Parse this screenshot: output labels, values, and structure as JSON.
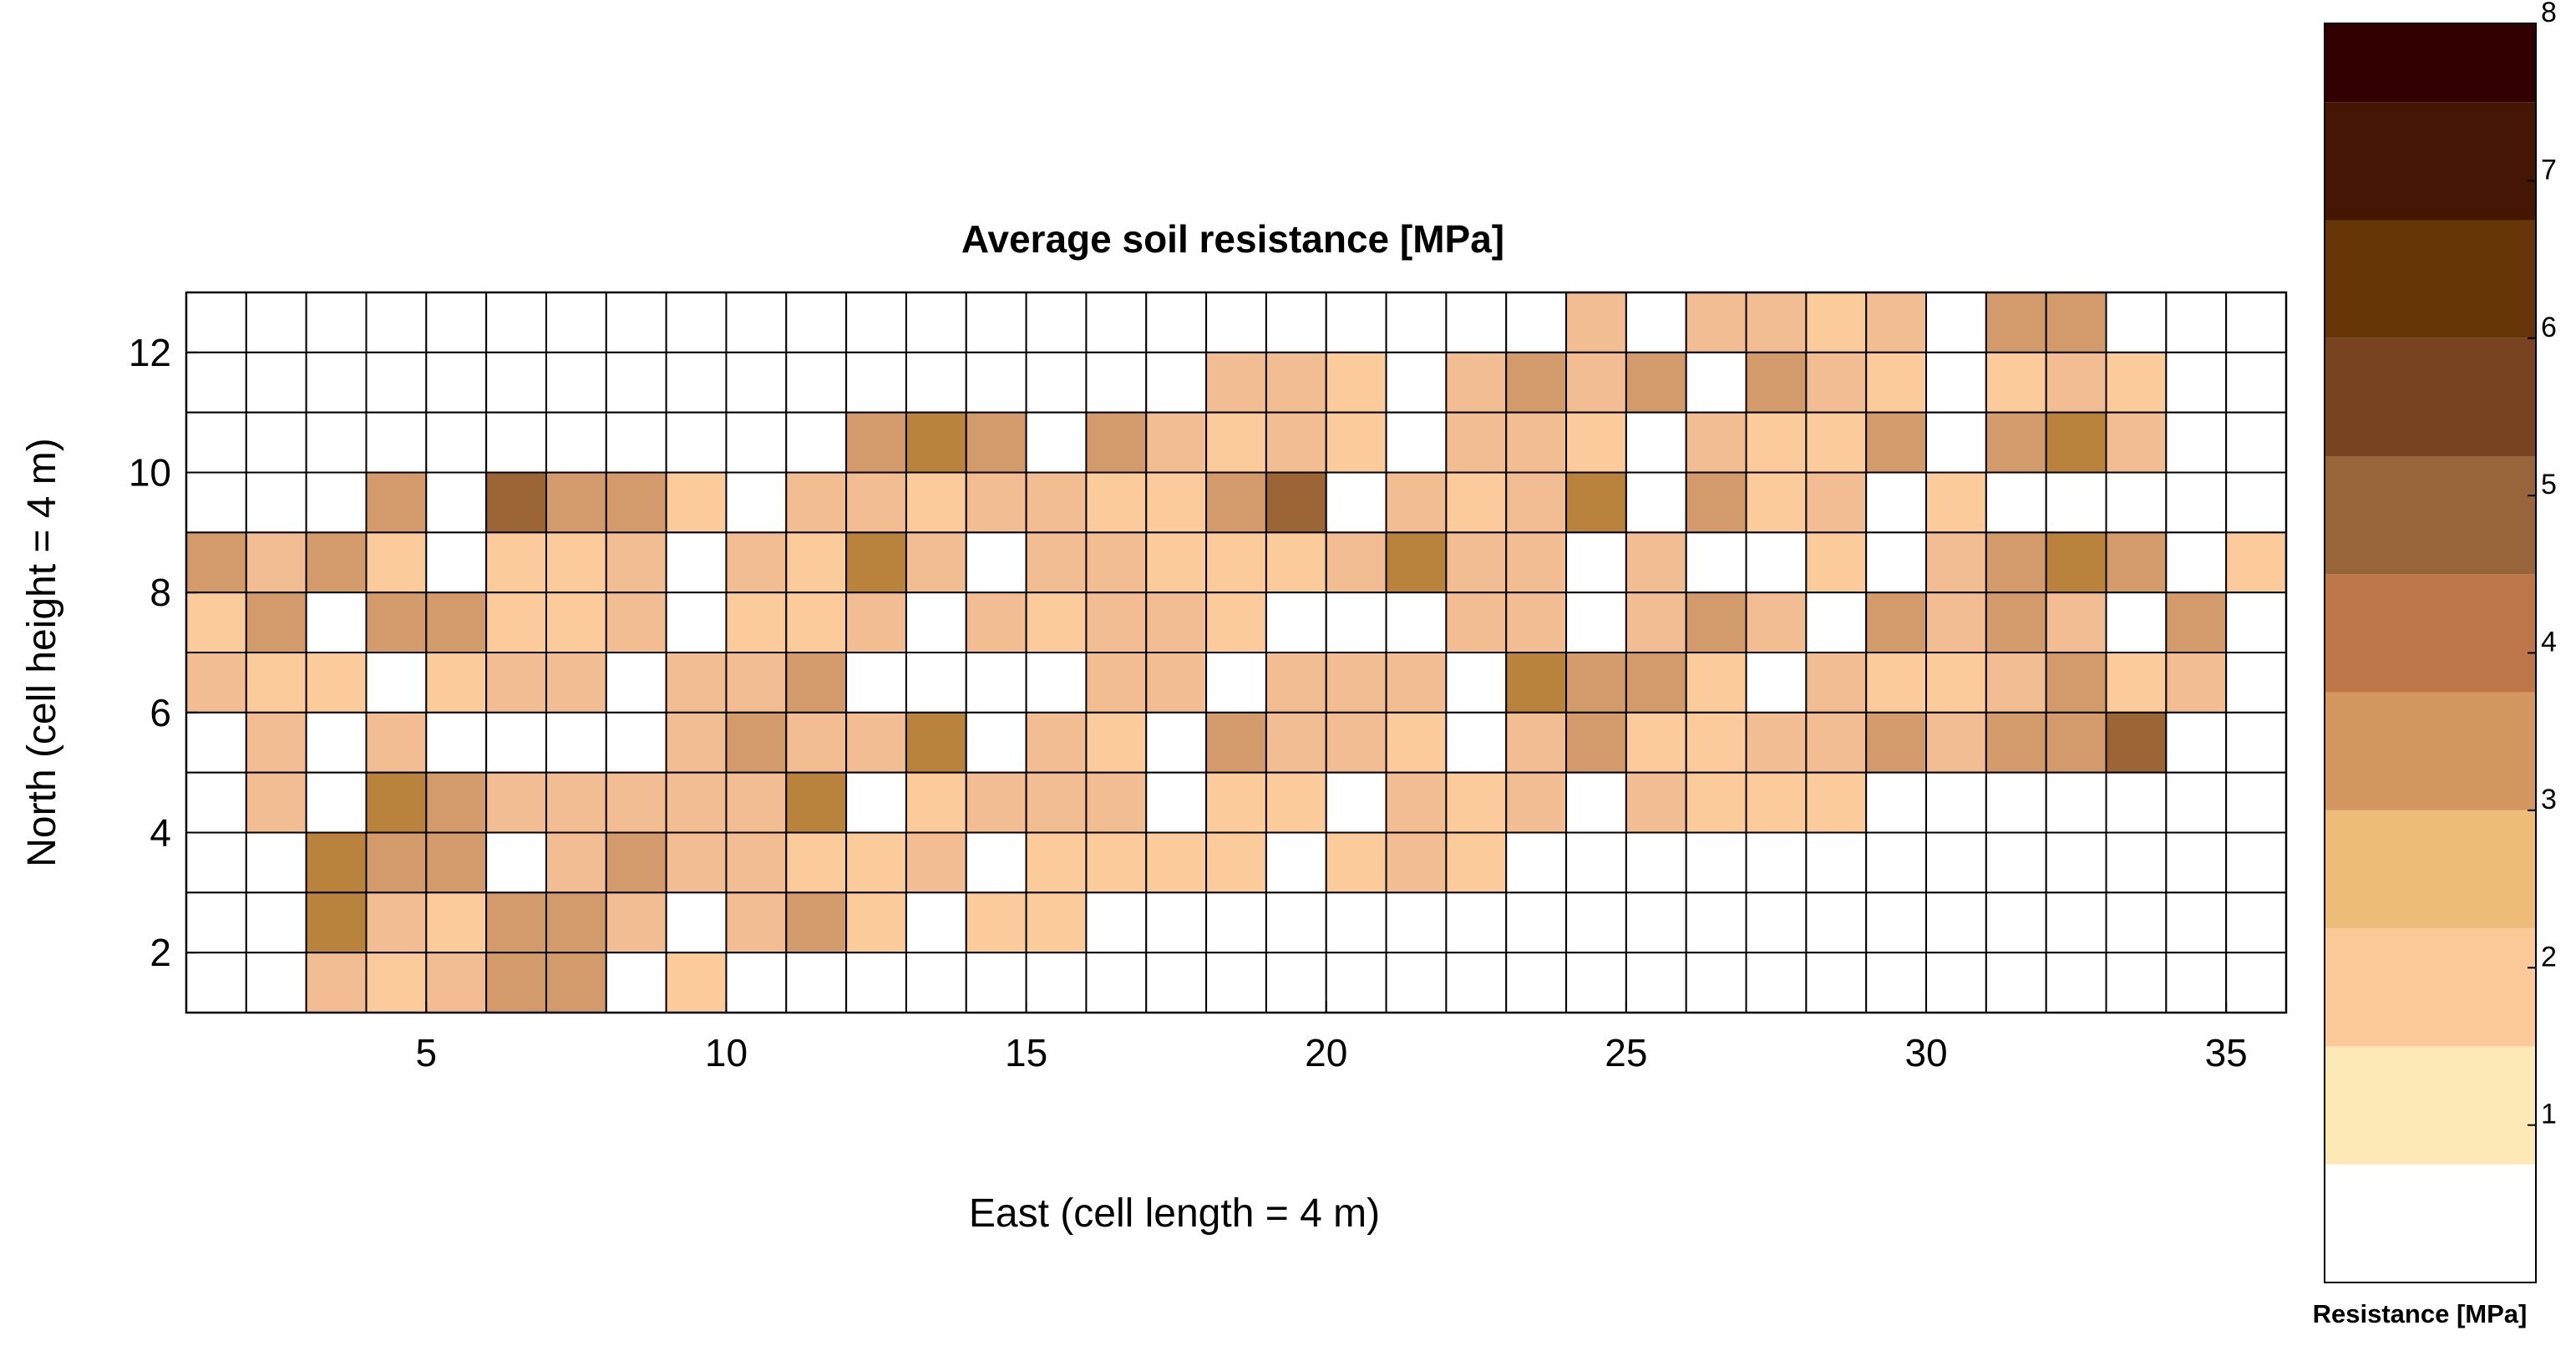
{
  "chart_data": {
    "type": "heatmap",
    "title": "Average soil resistance [MPa]",
    "xlabel": "East (cell length = 4 m)",
    "ylabel": "North (cell height = 4 m)",
    "xlim": [
      1,
      36
    ],
    "ylim": [
      1,
      13
    ],
    "x_ticks": [
      5,
      10,
      15,
      20,
      25,
      30,
      35
    ],
    "y_ticks": [
      2,
      4,
      6,
      8,
      10,
      12
    ],
    "grid": true,
    "colorbar": {
      "label": "Resistance [MPa]",
      "range": [
        0,
        8
      ],
      "ticks": [
        1,
        2,
        3,
        4,
        5,
        6,
        7,
        8
      ],
      "bands": [
        {
          "from": 0.0,
          "to": 0.75,
          "color": "#ffffff"
        },
        {
          "from": 0.75,
          "to": 1.5,
          "color": "#fde9b5"
        },
        {
          "from": 1.5,
          "to": 2.25,
          "color": "#fbc898"
        },
        {
          "from": 2.25,
          "to": 3.0,
          "color": "#ecbc78"
        },
        {
          "from": 3.0,
          "to": 3.75,
          "color": "#d4975f"
        },
        {
          "from": 3.75,
          "to": 4.5,
          "color": "#bd7748"
        },
        {
          "from": 4.5,
          "to": 5.25,
          "color": "#98653a"
        },
        {
          "from": 5.25,
          "to": 6.0,
          "color": "#784320"
        },
        {
          "from": 6.0,
          "to": 6.75,
          "color": "#663608"
        },
        {
          "from": 6.75,
          "to": 7.5,
          "color": "#461604"
        },
        {
          "from": 7.5,
          "to": 8.0,
          "color": "#320000"
        }
      ]
    },
    "cell_palette": {
      "0": "#ffffff",
      "1": "#fccb9b",
      "2": "#f2bd92",
      "3": "#d39b6b",
      "4": "#b9833e",
      "5": "#9b6535"
    },
    "row_order": "top-to-bottom (north 12 at top, north 1 at bottom)",
    "columns": 35,
    "grid_levels": [
      [
        0,
        0,
        0,
        0,
        0,
        0,
        0,
        0,
        0,
        0,
        0,
        0,
        0,
        0,
        0,
        0,
        0,
        0,
        0,
        0,
        0,
        0,
        0,
        2,
        0,
        2,
        2,
        1,
        2,
        0,
        3,
        3,
        0,
        0,
        0
      ],
      [
        0,
        0,
        0,
        0,
        0,
        0,
        0,
        0,
        0,
        0,
        0,
        0,
        0,
        0,
        0,
        0,
        0,
        2,
        2,
        1,
        0,
        2,
        3,
        2,
        3,
        0,
        3,
        2,
        1,
        0,
        1,
        2,
        1,
        0,
        0
      ],
      [
        0,
        0,
        0,
        0,
        0,
        0,
        0,
        0,
        0,
        0,
        0,
        3,
        4,
        3,
        0,
        3,
        2,
        1,
        2,
        1,
        0,
        2,
        2,
        1,
        0,
        2,
        1,
        1,
        3,
        0,
        3,
        4,
        2,
        0,
        0
      ],
      [
        0,
        0,
        0,
        3,
        0,
        5,
        3,
        3,
        1,
        0,
        2,
        2,
        1,
        2,
        2,
        1,
        1,
        3,
        5,
        0,
        2,
        1,
        2,
        4,
        0,
        3,
        1,
        2,
        0,
        1,
        0,
        0,
        0,
        0,
        0
      ],
      [
        3,
        2,
        3,
        1,
        0,
        1,
        1,
        2,
        0,
        2,
        1,
        4,
        2,
        0,
        2,
        2,
        1,
        1,
        1,
        2,
        4,
        2,
        2,
        0,
        2,
        0,
        0,
        1,
        0,
        2,
        3,
        4,
        3,
        0,
        1
      ],
      [
        1,
        3,
        0,
        3,
        3,
        1,
        1,
        2,
        0,
        1,
        1,
        2,
        0,
        2,
        1,
        2,
        2,
        1,
        0,
        0,
        0,
        2,
        2,
        0,
        2,
        3,
        2,
        0,
        3,
        2,
        3,
        2,
        0,
        3,
        0
      ],
      [
        2,
        1,
        1,
        0,
        1,
        2,
        2,
        0,
        2,
        2,
        3,
        0,
        0,
        0,
        0,
        2,
        2,
        0,
        2,
        2,
        2,
        0,
        4,
        3,
        3,
        1,
        0,
        2,
        1,
        1,
        2,
        3,
        1,
        2,
        0
      ],
      [
        0,
        2,
        0,
        2,
        0,
        0,
        0,
        0,
        2,
        3,
        2,
        2,
        4,
        0,
        2,
        1,
        0,
        3,
        2,
        2,
        1,
        0,
        2,
        3,
        1,
        1,
        2,
        2,
        3,
        2,
        3,
        3,
        5,
        0,
        0
      ],
      [
        0,
        2,
        0,
        4,
        3,
        2,
        2,
        2,
        2,
        2,
        4,
        0,
        1,
        2,
        2,
        2,
        0,
        1,
        1,
        0,
        2,
        1,
        2,
        0,
        2,
        1,
        1,
        1,
        0,
        0,
        0,
        0,
        0,
        0,
        0
      ],
      [
        0,
        0,
        4,
        3,
        3,
        0,
        2,
        3,
        2,
        2,
        1,
        1,
        2,
        0,
        1,
        1,
        1,
        1,
        0,
        1,
        2,
        1,
        0,
        0,
        0,
        0,
        0,
        0,
        0,
        0,
        0,
        0,
        0,
        0,
        0
      ],
      [
        0,
        0,
        4,
        2,
        1,
        3,
        3,
        2,
        0,
        2,
        3,
        1,
        0,
        1,
        1,
        0,
        0,
        0,
        0,
        0,
        0,
        0,
        0,
        0,
        0,
        0,
        0,
        0,
        0,
        0,
        0,
        0,
        0,
        0,
        0
      ],
      [
        0,
        0,
        2,
        1,
        2,
        3,
        3,
        0,
        1,
        0,
        0,
        0,
        0,
        0,
        0,
        0,
        0,
        0,
        0,
        0,
        0,
        0,
        0,
        0,
        0,
        0,
        0,
        0,
        0,
        0,
        0,
        0,
        0,
        0,
        0
      ]
    ]
  }
}
